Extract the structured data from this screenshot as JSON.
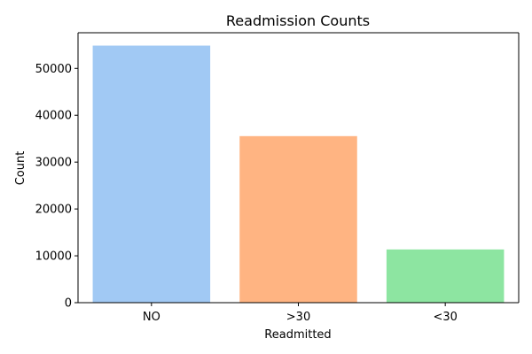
{
  "chart_data": {
    "type": "bar",
    "title": "Readmission Counts",
    "xlabel": "Readmitted",
    "ylabel": "Count",
    "categories": [
      "NO",
      ">30",
      "<30"
    ],
    "values": [
      54864,
      35545,
      11357
    ],
    "colors": [
      "#a1c9f4",
      "#ffb482",
      "#8de5a1"
    ],
    "ylim": [
      0,
      57610
    ],
    "yticks": [
      0,
      10000,
      20000,
      30000,
      40000,
      50000
    ],
    "ytick_labels": [
      "0",
      "10000",
      "20000",
      "30000",
      "40000",
      "50000"
    ],
    "grid": false,
    "legend": "none"
  }
}
